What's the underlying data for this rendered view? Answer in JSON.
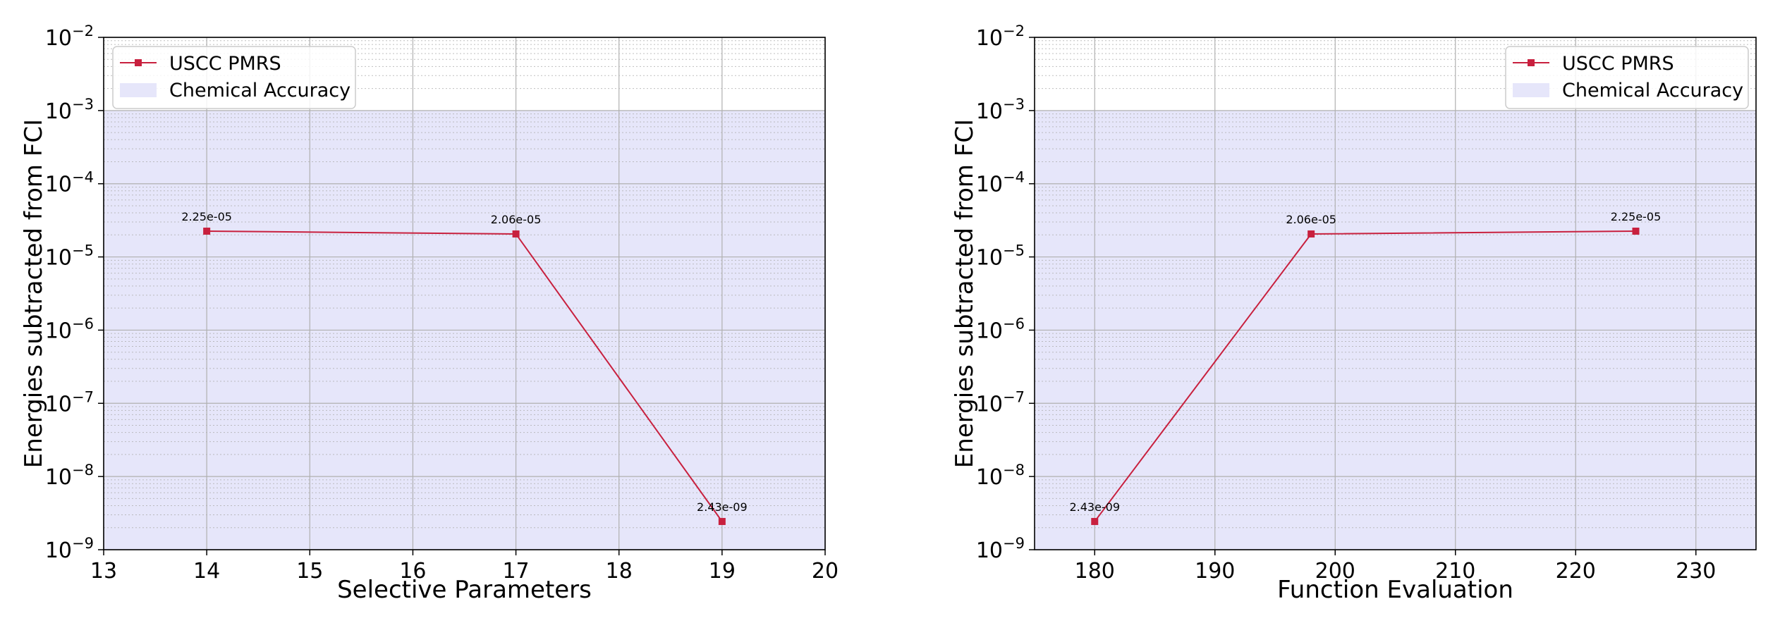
{
  "chart_data": [
    {
      "type": "line",
      "xlabel": "Selective Parameters",
      "ylabel": "Energies subtracted from FCI",
      "xlim": [
        13,
        20
      ],
      "xticks": [
        13,
        14,
        15,
        16,
        17,
        18,
        19,
        20
      ],
      "ylim": [
        1e-09,
        0.01
      ],
      "yscale": "log",
      "yticks": [
        {
          "base": "10",
          "exp": "−9",
          "value": 1e-09
        },
        {
          "base": "10",
          "exp": "−8",
          "value": 1e-08
        },
        {
          "base": "10",
          "exp": "−7",
          "value": 1e-07
        },
        {
          "base": "10",
          "exp": "−6",
          "value": 1e-06
        },
        {
          "base": "10",
          "exp": "−5",
          "value": 1e-05
        },
        {
          "base": "10",
          "exp": "−4",
          "value": 0.0001
        },
        {
          "base": "10",
          "exp": "−3",
          "value": 0.001
        },
        {
          "base": "10",
          "exp": "−2",
          "value": 0.01
        }
      ],
      "grid": true,
      "legend_position": "top-left",
      "series": [
        {
          "name": "USCC PMRS",
          "color": "#c8203e",
          "marker": "square",
          "x": [
            14,
            17,
            19
          ],
          "y": [
            2.25e-05,
            2.06e-05,
            2.43e-09
          ],
          "labels": [
            "2.25e-05",
            "2.06e-05",
            "2.43e-09"
          ]
        }
      ],
      "band": {
        "name": "Chemical Accuracy",
        "y0": 1e-09,
        "y1": 0.001,
        "color": "#e6e6fa"
      }
    },
    {
      "type": "line",
      "xlabel": "Function Evaluation",
      "ylabel": "Energies subtracted from FCI",
      "xlim": [
        175,
        235
      ],
      "xticks": [
        180,
        190,
        200,
        210,
        220,
        230
      ],
      "ylim": [
        1e-09,
        0.01
      ],
      "yscale": "log",
      "yticks": [
        {
          "base": "10",
          "exp": "−9",
          "value": 1e-09
        },
        {
          "base": "10",
          "exp": "−8",
          "value": 1e-08
        },
        {
          "base": "10",
          "exp": "−7",
          "value": 1e-07
        },
        {
          "base": "10",
          "exp": "−6",
          "value": 1e-06
        },
        {
          "base": "10",
          "exp": "−5",
          "value": 1e-05
        },
        {
          "base": "10",
          "exp": "−4",
          "value": 0.0001
        },
        {
          "base": "10",
          "exp": "−3",
          "value": 0.001
        },
        {
          "base": "10",
          "exp": "−2",
          "value": 0.01
        }
      ],
      "grid": true,
      "legend_position": "top-right",
      "series": [
        {
          "name": "USCC PMRS",
          "color": "#c8203e",
          "marker": "square",
          "x": [
            180,
            198,
            225
          ],
          "y": [
            2.43e-09,
            2.06e-05,
            2.25e-05
          ],
          "labels": [
            "2.43e-09",
            "2.06e-05",
            "2.25e-05"
          ]
        }
      ],
      "band": {
        "name": "Chemical Accuracy",
        "y0": 1e-09,
        "y1": 0.001,
        "color": "#e6e6fa"
      }
    }
  ]
}
